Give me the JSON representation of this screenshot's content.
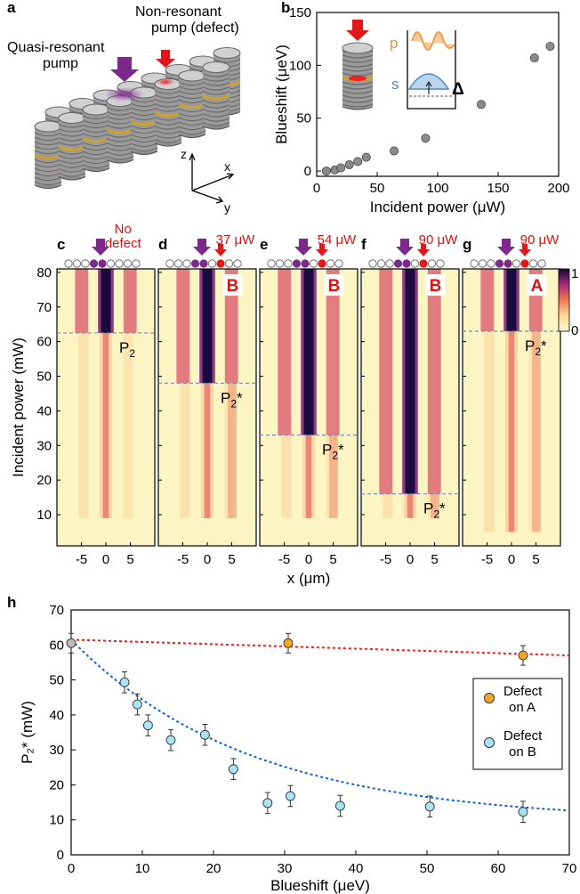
{
  "panel_a": {
    "label": "a",
    "quasi_pump_label": [
      "Quasi-resonant",
      "pump"
    ],
    "nonres_pump_label": [
      "Non-resonant",
      "pump (defect)"
    ],
    "axis_z": "z",
    "axis_x": "x",
    "axis_y": "y",
    "colors": {
      "quasi_pump": "#7b2a8c",
      "nonres_pump": "#e0181a",
      "gold_layer": "#d4a21a"
    }
  },
  "panel_b": {
    "label": "b",
    "inset": {
      "p": "p",
      "s": "s",
      "delta": "Δ",
      "p_color": "#f0903a",
      "s_color": "#4a8ac8"
    }
  },
  "panels_cg": [
    {
      "label": "c",
      "defect_label": "No",
      "defect_label2": "defect",
      "badge": "",
      "threshold_label": "P",
      "threshold_sub": "2",
      "star": "",
      "defect": false
    },
    {
      "label": "d",
      "defect_label": "37 μW",
      "defect_label2": "",
      "badge": "B",
      "threshold_label": "P",
      "threshold_sub": "2",
      "star": "*",
      "defect": true
    },
    {
      "label": "e",
      "defect_label": "54 μW",
      "defect_label2": "",
      "badge": "B",
      "threshold_label": "P",
      "threshold_sub": "2",
      "star": "*",
      "defect": true
    },
    {
      "label": "f",
      "defect_label": "90 μW",
      "defect_label2": "",
      "badge": "B",
      "threshold_label": "P",
      "threshold_sub": "2",
      "star": "*",
      "defect": true
    },
    {
      "label": "g",
      "defect_label": "90 μW",
      "defect_label2": "",
      "badge": "A",
      "threshold_label": "P",
      "threshold_sub": "2",
      "star": "*",
      "defect": true
    }
  ],
  "colorbar": {
    "max_label": "1",
    "min_label": "0"
  },
  "panel_h": {
    "label": "h"
  },
  "chart_data": [
    {
      "type": "scatter",
      "id": "b",
      "xlabel": "Incident power (μW)",
      "ylabel": "Blueshift (μeV)",
      "xlim": [
        0,
        200
      ],
      "ylim": [
        -5,
        150
      ],
      "xticks": [
        0,
        50,
        100,
        150,
        200
      ],
      "yticks": [
        0,
        50,
        100,
        150
      ],
      "x": [
        8,
        15,
        20,
        27,
        34,
        41,
        64,
        90,
        136,
        180,
        193
      ],
      "y": [
        0,
        1,
        3,
        6,
        9,
        13,
        19,
        31,
        63,
        107,
        118
      ]
    },
    {
      "type": "heatmap",
      "id": "c-g",
      "xlabel": "x (μm)",
      "ylabel": "Incident power (mW)",
      "xlim": [
        -10,
        10
      ],
      "ylim": [
        1,
        81
      ],
      "xticks": [
        -5,
        0,
        5
      ],
      "yticks": [
        10,
        20,
        30,
        40,
        50,
        60,
        70,
        80
      ],
      "thresholds_mW": [
        62.5,
        48,
        33,
        16,
        63
      ],
      "colorbar_range": [
        0,
        1
      ]
    },
    {
      "type": "scatter",
      "id": "h",
      "xlabel": "Blueshift (μeV)",
      "ylabel": "P₂* (mW)",
      "xlim": [
        0,
        70
      ],
      "ylim": [
        0,
        70
      ],
      "xticks": [
        0,
        10,
        20,
        30,
        40,
        50,
        60,
        70
      ],
      "yticks": [
        0,
        10,
        20,
        30,
        40,
        50,
        60,
        70
      ],
      "series": [
        {
          "name": "",
          "color": "#bbbbbb",
          "x": [
            0
          ],
          "y": [
            60.5
          ],
          "err": [
            2.8
          ]
        },
        {
          "name": "Defect on A",
          "color": "#f5a623",
          "x": [
            30.5,
            63.5
          ],
          "y": [
            60.5,
            57
          ],
          "err": [
            2.8,
            2.8
          ]
        },
        {
          "name": "Defect on B",
          "color": "#a8e4f5",
          "x": [
            7.5,
            9.3,
            10.8,
            14,
            18.8,
            22.8,
            27.6,
            30.8,
            37.8,
            50.4,
            63.5
          ],
          "y": [
            49.3,
            43,
            37,
            32.8,
            34.3,
            24.5,
            14.8,
            16.8,
            14,
            13.8,
            12.3
          ],
          "err": [
            3,
            3,
            3,
            3,
            3,
            3,
            3,
            3,
            3,
            3,
            3
          ]
        }
      ],
      "fits": [
        {
          "color": "#e02020",
          "x0": 0,
          "y0": 61.5,
          "x1": 70,
          "y1": 57
        },
        {
          "color": "#1060d8",
          "a": 52,
          "tau": 25,
          "c": 9.5
        }
      ],
      "legend": [
        "Defect",
        "on A",
        "Defect",
        "on B"
      ]
    }
  ]
}
